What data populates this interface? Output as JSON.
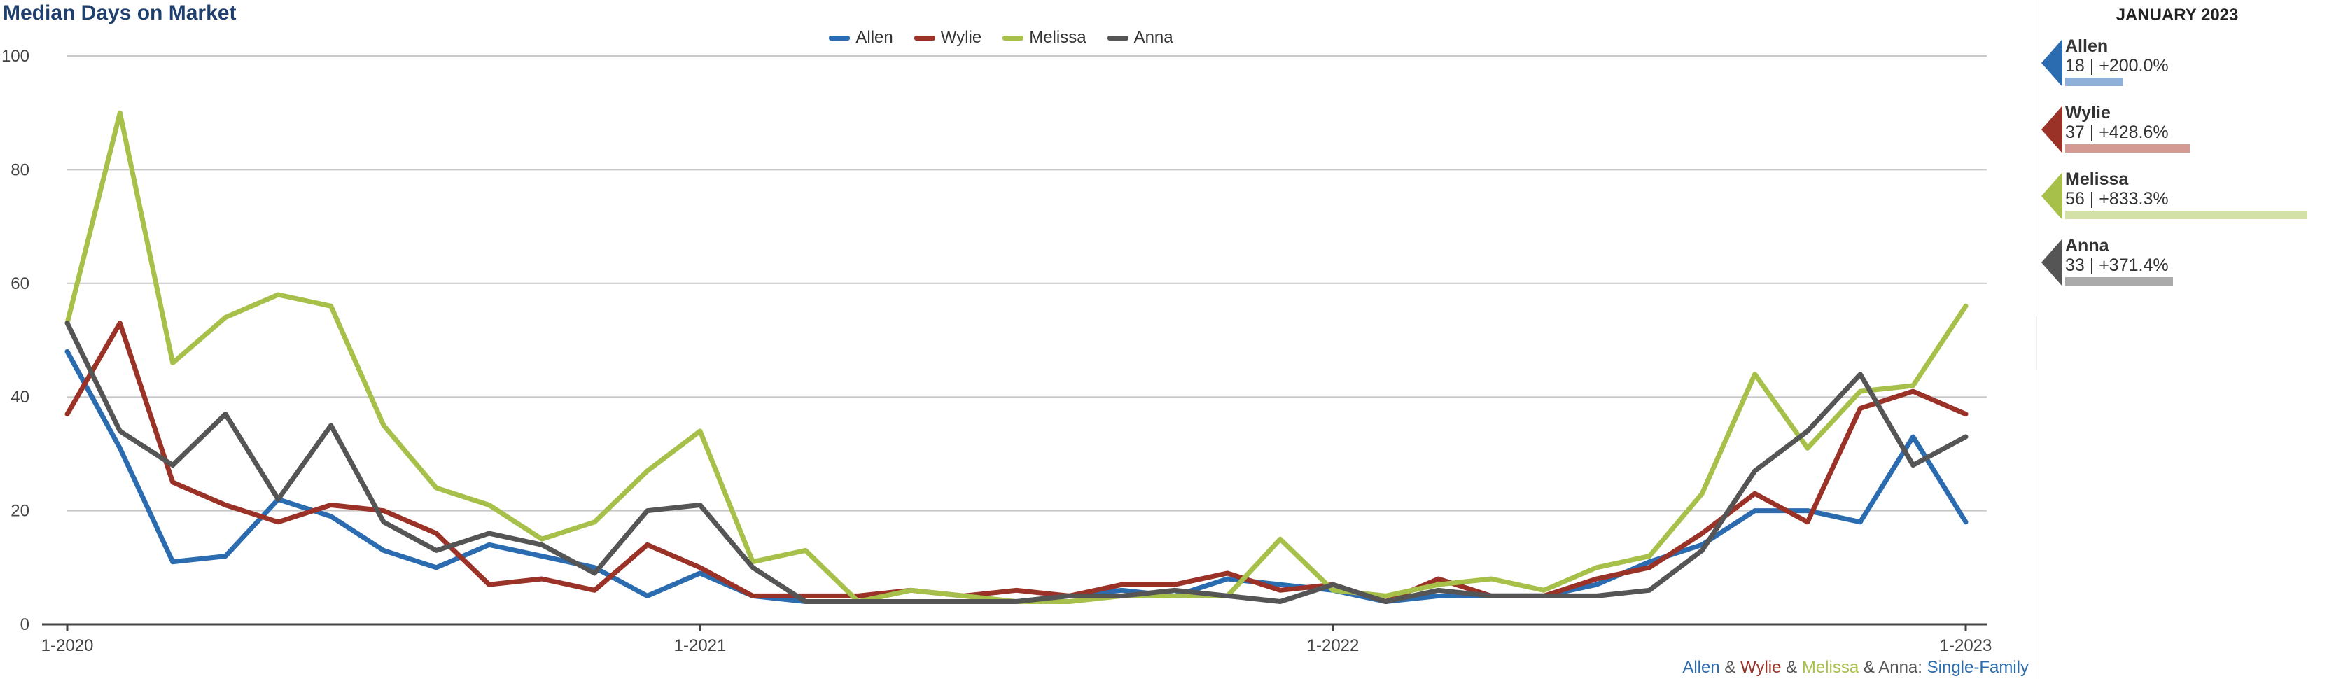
{
  "title": "Median Days on Market",
  "colors": {
    "Allen": "#2b6cb0",
    "Wylie": "#9a3227",
    "Melissa": "#a6c04a",
    "Anna": "#555555"
  },
  "legend": [
    {
      "label": "Allen",
      "color": "#2b6cb0"
    },
    {
      "label": "Wylie",
      "color": "#9a3227"
    },
    {
      "label": "Melissa",
      "color": "#a6c04a"
    },
    {
      "label": "Anna",
      "color": "#555555"
    }
  ],
  "footer": {
    "parts": [
      {
        "text": "Allen",
        "color": "#2b6cb0"
      },
      {
        "text": " & ",
        "color": "#555555"
      },
      {
        "text": "Wylie",
        "color": "#9a3227"
      },
      {
        "text": " & ",
        "color": "#555555"
      },
      {
        "text": "Melissa",
        "color": "#a6c04a"
      },
      {
        "text": " & ",
        "color": "#555555"
      },
      {
        "text": "Anna",
        "color": "#555555"
      },
      {
        "text": ": ",
        "color": "#555555"
      },
      {
        "text": "Single-Family",
        "color": "#2b6cb0"
      }
    ]
  },
  "side_panel": {
    "title": "JANUARY 2023",
    "items": [
      {
        "name": "Allen",
        "stat": "18 | +200.0%",
        "pct": 200.0,
        "color": "#2b6cb0",
        "bar_color": "#8fb0d8"
      },
      {
        "name": "Wylie",
        "stat": "37 | +428.6%",
        "pct": 428.6,
        "color": "#9a3227",
        "bar_color": "#d29a93"
      },
      {
        "name": "Melissa",
        "stat": "56 | +833.3%",
        "pct": 833.3,
        "color": "#a6c04a",
        "bar_color": "#d3e0a6"
      },
      {
        "name": "Anna",
        "stat": "33 | +371.4%",
        "pct": 371.4,
        "color": "#555555",
        "bar_color": "#aaaaaa"
      }
    ]
  },
  "chart_data": {
    "type": "line",
    "title": "Median Days on Market",
    "x": [
      "1-2020",
      "2-2020",
      "3-2020",
      "4-2020",
      "5-2020",
      "6-2020",
      "7-2020",
      "8-2020",
      "9-2020",
      "10-2020",
      "11-2020",
      "12-2020",
      "1-2021",
      "2-2021",
      "3-2021",
      "4-2021",
      "5-2021",
      "6-2021",
      "7-2021",
      "8-2021",
      "9-2021",
      "10-2021",
      "11-2021",
      "12-2021",
      "1-2022",
      "2-2022",
      "3-2022",
      "4-2022",
      "5-2022",
      "6-2022",
      "7-2022",
      "8-2022",
      "9-2022",
      "10-2022",
      "11-2022",
      "12-2022",
      "1-2023"
    ],
    "x_tick_labels": [
      "1-2020",
      "1-2021",
      "1-2022",
      "1-2023"
    ],
    "ylim": [
      0,
      100
    ],
    "y_ticks": [
      0,
      20,
      40,
      60,
      80,
      100
    ],
    "grid": true,
    "legend_position": "top-center",
    "series": [
      {
        "name": "Allen",
        "color": "#2b6cb0",
        "values": [
          48,
          31,
          11,
          12,
          22,
          19,
          13,
          10,
          14,
          12,
          10,
          5,
          9,
          5,
          4,
          4,
          4,
          4,
          4,
          5,
          6,
          5,
          8,
          7,
          6,
          4,
          5,
          5,
          5,
          7,
          11,
          14,
          20,
          20,
          18,
          33,
          18
        ]
      },
      {
        "name": "Wylie",
        "color": "#9a3227",
        "values": [
          37,
          53,
          25,
          21,
          18,
          21,
          20,
          16,
          7,
          8,
          6,
          14,
          10,
          5,
          5,
          5,
          6,
          5,
          6,
          5,
          7,
          7,
          9,
          6,
          7,
          4,
          8,
          5,
          5,
          8,
          10,
          16,
          23,
          18,
          38,
          41,
          37
        ]
      },
      {
        "name": "Melissa",
        "color": "#a6c04a",
        "values": [
          53,
          90,
          46,
          54,
          58,
          56,
          35,
          24,
          21,
          15,
          18,
          27,
          34,
          11,
          13,
          4,
          6,
          5,
          4,
          4,
          5,
          5,
          5,
          15,
          6,
          5,
          7,
          8,
          6,
          10,
          12,
          23,
          44,
          31,
          41,
          42,
          56
        ]
      },
      {
        "name": "Anna",
        "color": "#555555",
        "values": [
          53,
          34,
          28,
          37,
          22,
          35,
          18,
          13,
          16,
          14,
          9,
          20,
          21,
          10,
          4,
          4,
          4,
          4,
          4,
          5,
          5,
          6,
          5,
          4,
          7,
          4,
          6,
          5,
          5,
          5,
          6,
          13,
          27,
          34,
          44,
          28,
          33
        ]
      }
    ]
  }
}
